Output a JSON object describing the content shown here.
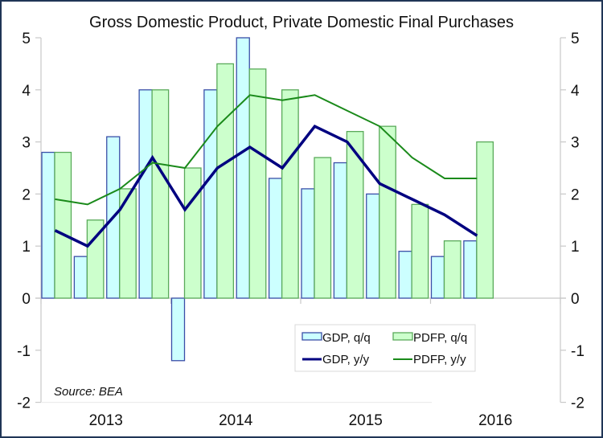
{
  "chart_data": {
    "type": "bar",
    "title": "Gross Domestic Product, Private Domestic Final Purchases",
    "xlabel": "",
    "ylabel": "",
    "ylim": [
      -2,
      5
    ],
    "y_ticks": [
      -2,
      -1,
      0,
      1,
      2,
      3,
      4,
      5
    ],
    "y_tick_labels": [
      "-2",
      "-1",
      "0",
      "1",
      "2",
      "3",
      "4",
      "5"
    ],
    "y2_ticks": [
      -2,
      -1,
      0,
      1,
      2,
      3,
      4,
      5
    ],
    "y2_tick_labels": [
      "-2",
      "-1",
      "0",
      "1",
      "2",
      "3",
      "4",
      "5"
    ],
    "x_axis_quarters_span": 16,
    "x_year_labels": [
      "2013",
      "2014",
      "2015",
      "2016"
    ],
    "categories": [
      "2013Q1",
      "2013Q2",
      "2013Q3",
      "2013Q4",
      "2014Q1",
      "2014Q2",
      "2014Q3",
      "2014Q4",
      "2015Q1",
      "2015Q2",
      "2015Q3",
      "2015Q4",
      "2016Q1",
      "2016Q2"
    ],
    "series": [
      {
        "name": "GDP, q/q",
        "kind": "bar",
        "fill": "#ccffff",
        "stroke": "#3a4fa8",
        "values": [
          2.8,
          0.8,
          3.1,
          4.0,
          -1.2,
          4.0,
          5.0,
          2.3,
          2.1,
          2.6,
          2.0,
          0.9,
          0.8,
          1.1
        ]
      },
      {
        "name": "PDFP, q/q",
        "kind": "bar",
        "fill": "#ccffcc",
        "stroke": "#5aaa5a",
        "values": [
          2.8,
          1.5,
          2.1,
          4.0,
          2.5,
          4.5,
          4.4,
          4.0,
          2.7,
          3.2,
          3.3,
          1.8,
          1.1,
          3.0
        ]
      },
      {
        "name": "GDP, y/y",
        "kind": "line",
        "stroke": "#000080",
        "values": [
          1.3,
          1.0,
          1.7,
          2.7,
          1.7,
          2.5,
          2.9,
          2.5,
          3.3,
          3.0,
          2.2,
          1.9,
          1.6,
          1.2
        ]
      },
      {
        "name": "PDFP, y/y",
        "kind": "line",
        "stroke": "#1a8a1a",
        "values": [
          1.9,
          1.8,
          2.1,
          2.6,
          2.5,
          3.3,
          3.9,
          3.8,
          3.9,
          3.6,
          3.3,
          2.7,
          2.3,
          2.3
        ]
      }
    ],
    "legend": {
      "placement": "bottom-center-inside",
      "entries": [
        "GDP, q/q",
        "PDFP, q/q",
        "GDP, y/y",
        "PDFP, y/y"
      ]
    },
    "annotations": [
      "Source: BEA"
    ],
    "grid": false
  }
}
